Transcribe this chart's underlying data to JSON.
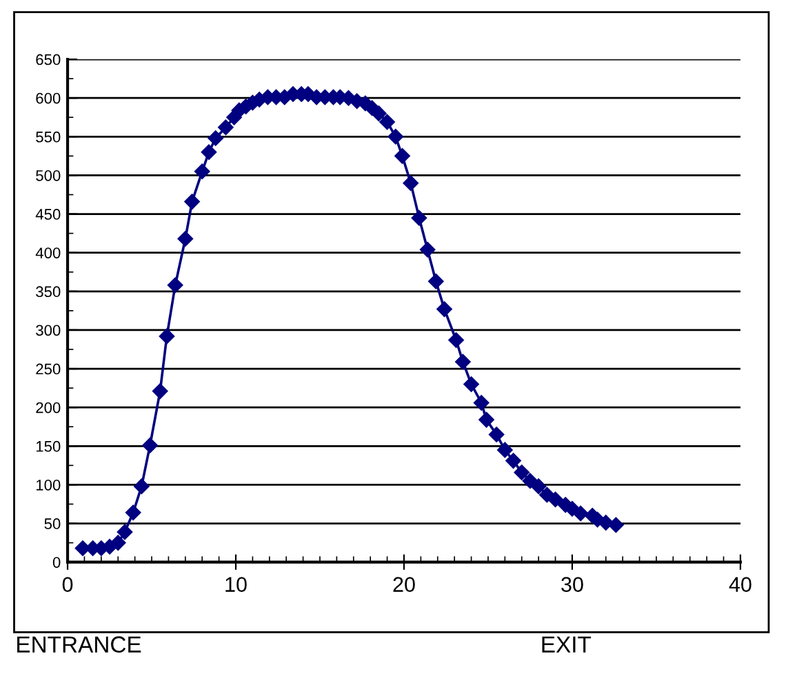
{
  "chart_data": {
    "type": "line",
    "x": [
      0.9,
      1.5,
      2.0,
      2.5,
      3.0,
      3.4,
      3.9,
      4.4,
      4.9,
      5.5,
      5.9,
      6.4,
      7.0,
      7.4,
      8.0,
      8.4,
      8.8,
      9.4,
      9.9,
      10.2,
      10.6,
      11.0,
      11.4,
      11.9,
      12.4,
      12.9,
      13.4,
      13.9,
      14.3,
      14.8,
      15.3,
      15.8,
      16.2,
      16.7,
      17.2,
      17.7,
      18.1,
      18.5,
      19.0,
      19.5,
      19.9,
      20.4,
      20.9,
      21.4,
      21.9,
      22.4,
      23.1,
      23.5,
      24.0,
      24.6,
      24.9,
      25.5,
      26.0,
      26.5,
      27.0,
      27.5,
      28.0,
      28.5,
      29.0,
      29.6,
      30.0,
      30.5,
      31.2,
      31.5,
      32.0,
      32.6
    ],
    "series": [
      {
        "color": "#000080",
        "values": [
          18,
          18,
          18,
          20,
          25,
          39,
          64,
          98,
          151,
          221,
          292,
          358,
          418,
          466,
          505,
          530,
          548,
          562,
          575,
          584,
          589,
          594,
          598,
          601,
          601,
          601,
          605,
          605,
          605,
          601,
          601,
          601,
          601,
          600,
          596,
          593,
          587,
          580,
          569,
          550,
          525,
          490,
          445,
          404,
          363,
          327,
          287,
          259,
          230,
          206,
          184,
          165,
          145,
          131,
          116,
          105,
          98,
          87,
          81,
          74,
          69,
          63,
          60,
          55,
          51,
          48
        ]
      }
    ],
    "xlim": [
      0,
      40
    ],
    "xticks": [
      0,
      10,
      20,
      30,
      40
    ],
    "ylim": [
      0,
      650
    ],
    "yticks": [
      0,
      50,
      100,
      150,
      200,
      250,
      300,
      350,
      400,
      450,
      500,
      550,
      600,
      650
    ],
    "grid": "y",
    "marker": "diamond",
    "line_style": "solid",
    "annotations": [
      "ENTRANCE",
      "EXIT"
    ]
  }
}
